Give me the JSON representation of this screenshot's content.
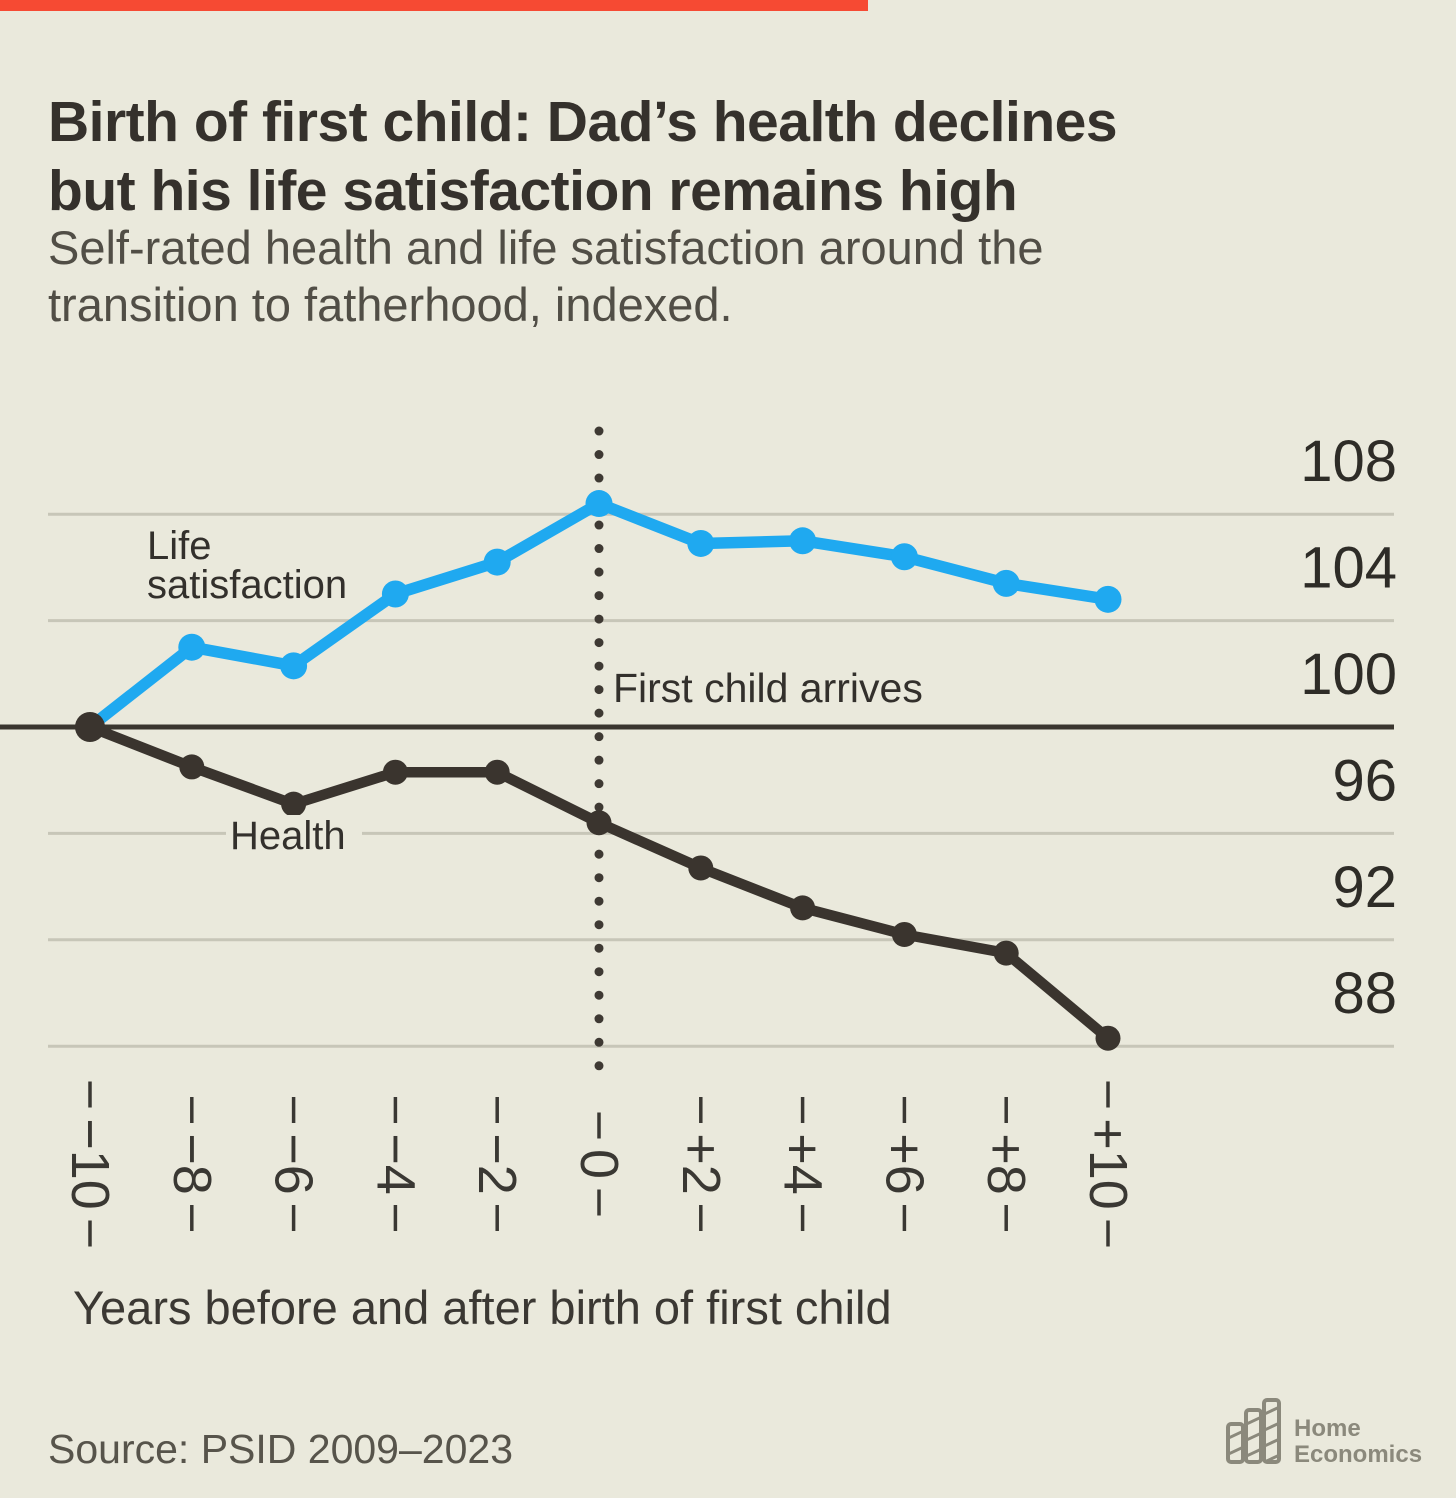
{
  "progress_bar": {
    "color": "#F64A33"
  },
  "header": {
    "title_line1": "Birth of first child: Dad’s health declines",
    "title_line2": "but his life satisfaction remains high",
    "subtitle_line1": "Self-rated health and life satisfaction around the",
    "subtitle_line2": "transition to fatherhood, indexed."
  },
  "chart_data": {
    "type": "line",
    "x": [
      -10,
      -8,
      -6,
      -4,
      -2,
      0,
      2,
      4,
      6,
      8,
      10
    ],
    "x_tick_labels": [
      "−10",
      "−8",
      "−6",
      "−4",
      "−2",
      "0",
      "+2",
      "+4",
      "+6",
      "+8",
      "+10"
    ],
    "series": [
      {
        "name": "Life satisfaction",
        "color": "#1FA9F0",
        "values": [
          100,
          103,
          102.3,
          105,
          106.2,
          108.4,
          106.9,
          107,
          106.4,
          105.4,
          104.8
        ]
      },
      {
        "name": "Health",
        "color": "#3A342E",
        "values": [
          100,
          98.5,
          97.1,
          98.3,
          98.3,
          96.4,
          94.7,
          93.2,
          92.2,
          91.5,
          88.3
        ]
      }
    ],
    "y_ticks": [
      108,
      104,
      100,
      96,
      92,
      88
    ],
    "baseline_value": 100,
    "ylim": [
      86.5,
      109.5
    ],
    "grid": true,
    "annotation": "First child arrives",
    "xlabel": "Years before and after birth of first child",
    "series_labels": {
      "life_line1": "Life",
      "life_line2": "satisfaction",
      "health": "Health"
    }
  },
  "colors": {
    "background": "#EAE9DC",
    "gridline": "#C7C6B8",
    "baseline": "#3A362F",
    "dotted_line": "#3E3933",
    "tick": "#3A3833",
    "y_label": "#2E2C27",
    "life_blue": "#1FA9F0",
    "health_dark": "#3A342E"
  },
  "footer": {
    "source": "Source: PSID 2009–2023",
    "logo_line1": "Home",
    "logo_line2": "Economics"
  }
}
